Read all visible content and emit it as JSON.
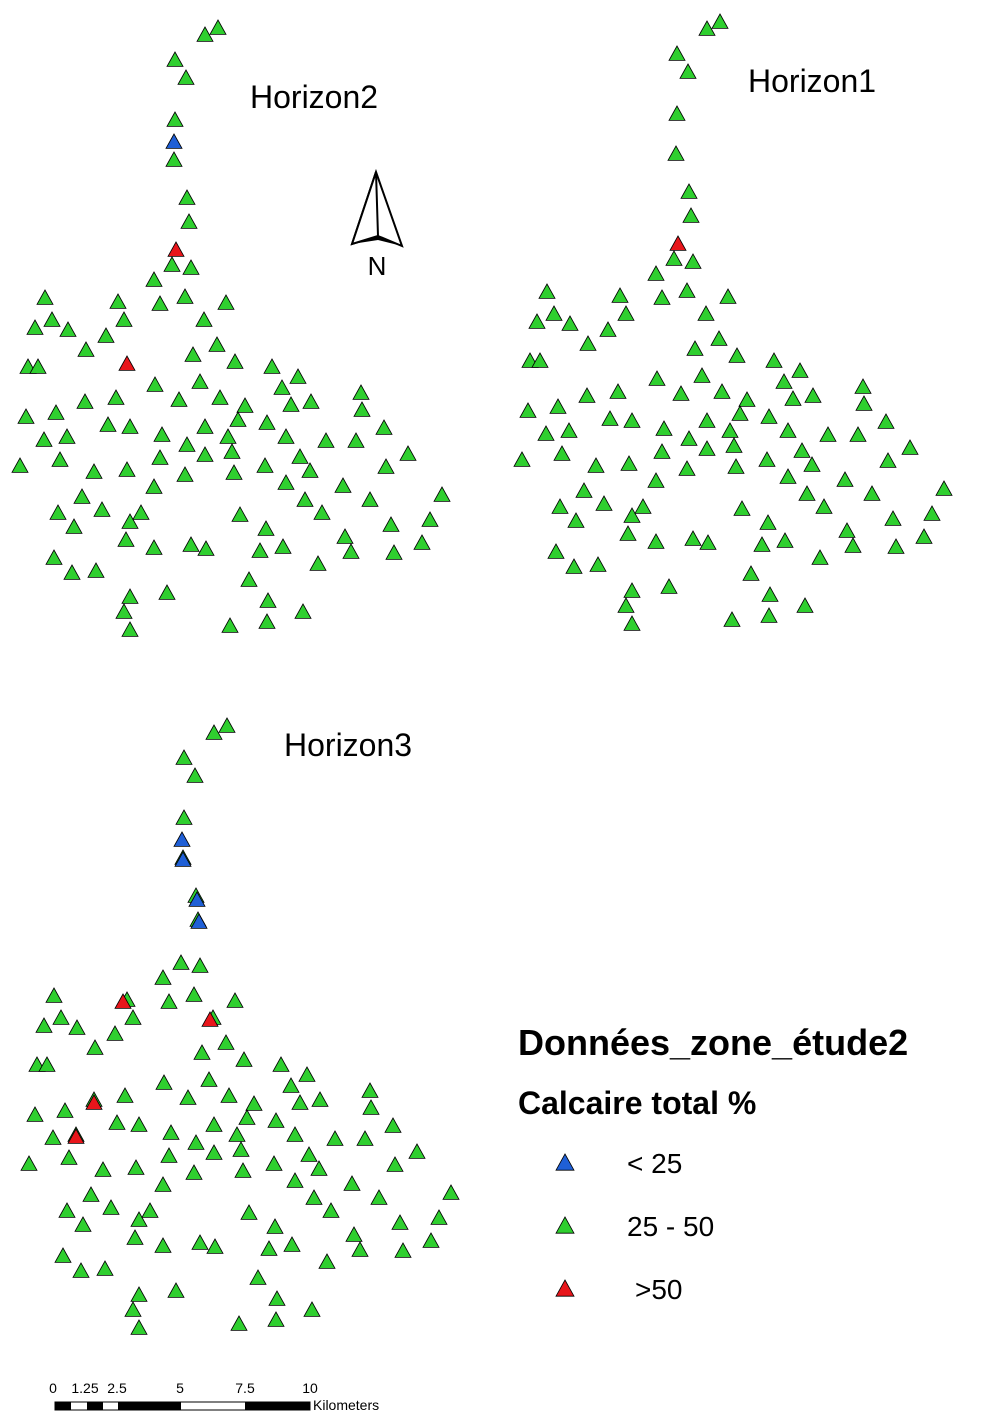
{
  "maps": [
    {
      "title": "Horizon2"
    },
    {
      "title": "Horizon1"
    },
    {
      "title": "Horizon3"
    }
  ],
  "north": "N",
  "legend": {
    "title": "Données_zone_étude2",
    "subtitle": "Calcaire total %",
    "items": [
      {
        "label": "< 25",
        "color": "#1f5fd6"
      },
      {
        "label": "25 - 50",
        "color": "#2fcf2f"
      },
      {
        "label": ">50",
        "color": "#e8161b"
      }
    ]
  },
  "scale_bar": {
    "labels": [
      "0",
      "1.25",
      "2.5",
      "5",
      "7.5",
      "10"
    ],
    "unit": "Kilometers"
  }
}
